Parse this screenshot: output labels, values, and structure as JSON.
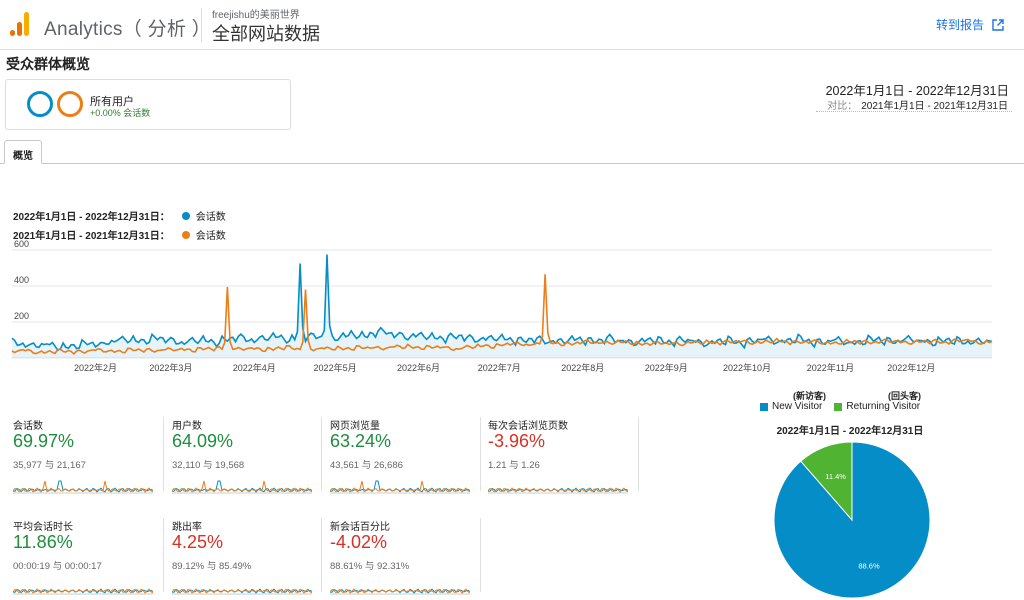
{
  "header": {
    "app_title": "Analytics（ 分析 ）",
    "account": "freejishu的美丽世界",
    "property": "全部网站数据",
    "goto_report": "转到报告",
    "goto_icon": "external-link-icon"
  },
  "page_title": "受众群体概览",
  "segment": {
    "name": "所有用户",
    "change": "+0.00% 会话数"
  },
  "date_range": {
    "main": "2022年1月1日 - 2022年12月31日",
    "compare_label": "对比：",
    "compare": "2021年1月1日 - 2021年12月31日"
  },
  "tabs": [
    {
      "label": "概览"
    }
  ],
  "chart_legend": [
    {
      "range": "2022年1月1日 - 2022年12月31日：",
      "metric": "会话数",
      "color": "#058dc7"
    },
    {
      "range": "2021年1月1日 - 2021年12月31日：",
      "metric": "会话数",
      "color": "#ed7e17"
    }
  ],
  "chart_data": [
    {
      "type": "line",
      "title": "",
      "xlabel": "",
      "ylabel": "",
      "ylim": [
        0,
        600
      ],
      "y_ticks": [
        "200",
        "400",
        "600"
      ],
      "x_ticks": [
        "2022年2月",
        "2022年3月",
        "2022年4月",
        "2022年5月",
        "2022年6月",
        "2022年7月",
        "2022年8月",
        "2022年9月",
        "2022年10月",
        "2022年11月",
        "2022年12月"
      ],
      "x_ticks_day": [
        31,
        59,
        90,
        120,
        151,
        181,
        212,
        243,
        273,
        304,
        334
      ],
      "days": 365,
      "grid": true,
      "series": [
        {
          "name": "2022年1月1日 - 2022年12月31日",
          "color": "#058dc7",
          "weekly": [
            80,
            72,
            65,
            70,
            78,
            95,
            100,
            105,
            98,
            92,
            95,
            102,
            108,
            110,
            112,
            108,
            118,
            115,
            130,
            140,
            132,
            120,
            118,
            115,
            110,
            108,
            105,
            100,
            95,
            98,
            100,
            102,
            95,
            92,
            98,
            95,
            90,
            88,
            92,
            95,
            100,
            98,
            95,
            92,
            90,
            95,
            100,
            98,
            96,
            92,
            95,
            90,
            88
          ],
          "spikes": [
            {
              "day": 107,
              "value": 525
            },
            {
              "day": 117,
              "value": 575
            }
          ]
        },
        {
          "name": "2021年1月1日 - 2021年12月31日",
          "color": "#ed7e17",
          "weekly": [
            38,
            35,
            35,
            38,
            40,
            40,
            42,
            45,
            45,
            48,
            50,
            52,
            50,
            50,
            55,
            52,
            50,
            55,
            55,
            58,
            60,
            62,
            58,
            55,
            60,
            70,
            75,
            78,
            80,
            82,
            85,
            88,
            85,
            82,
            80,
            82,
            85,
            88,
            90,
            88,
            92,
            90,
            88,
            85,
            88,
            90,
            92,
            90,
            88,
            92,
            95,
            90,
            92
          ],
          "spikes": [
            {
              "day": 80,
              "value": 395
            },
            {
              "day": 109,
              "value": 380
            },
            {
              "day": 198,
              "value": 465
            }
          ]
        }
      ]
    },
    {
      "type": "pie",
      "title": "2022年1月1日 - 2022年12月31日",
      "legend_position": "top",
      "legend_headers": [
        "(新访客)",
        "(回头客)"
      ],
      "slices": [
        {
          "label": "New Visitor",
          "value": 88.6,
          "display": "88.6%",
          "color": "#058dc7"
        },
        {
          "label": "Returning Visitor",
          "value": 11.4,
          "display": "11.4%",
          "color": "#50b432"
        }
      ]
    }
  ],
  "metrics": [
    {
      "name": "会话数",
      "change": "69.97%",
      "dir": "up",
      "compare": "35,977 与 21,167"
    },
    {
      "name": "用户数",
      "change": "64.09%",
      "dir": "up",
      "compare": "32,110 与 19,568"
    },
    {
      "name": "网页浏览量",
      "change": "63.24%",
      "dir": "up",
      "compare": "43,561 与 26,686"
    },
    {
      "name": "每次会话浏览页数",
      "change": "-3.96%",
      "dir": "down",
      "compare": "1.21 与 1.26"
    },
    {
      "name": "平均会话时长",
      "change": "11.86%",
      "dir": "up",
      "compare": "00:00:19 与 00:00:17"
    },
    {
      "name": "跳出率",
      "change": "4.25%",
      "dir": "down",
      "compare": "89.12% 与 85.49%"
    },
    {
      "name": "新会话百分比",
      "change": "-4.02%",
      "dir": "down",
      "compare": "88.61% 与 92.31%"
    }
  ]
}
